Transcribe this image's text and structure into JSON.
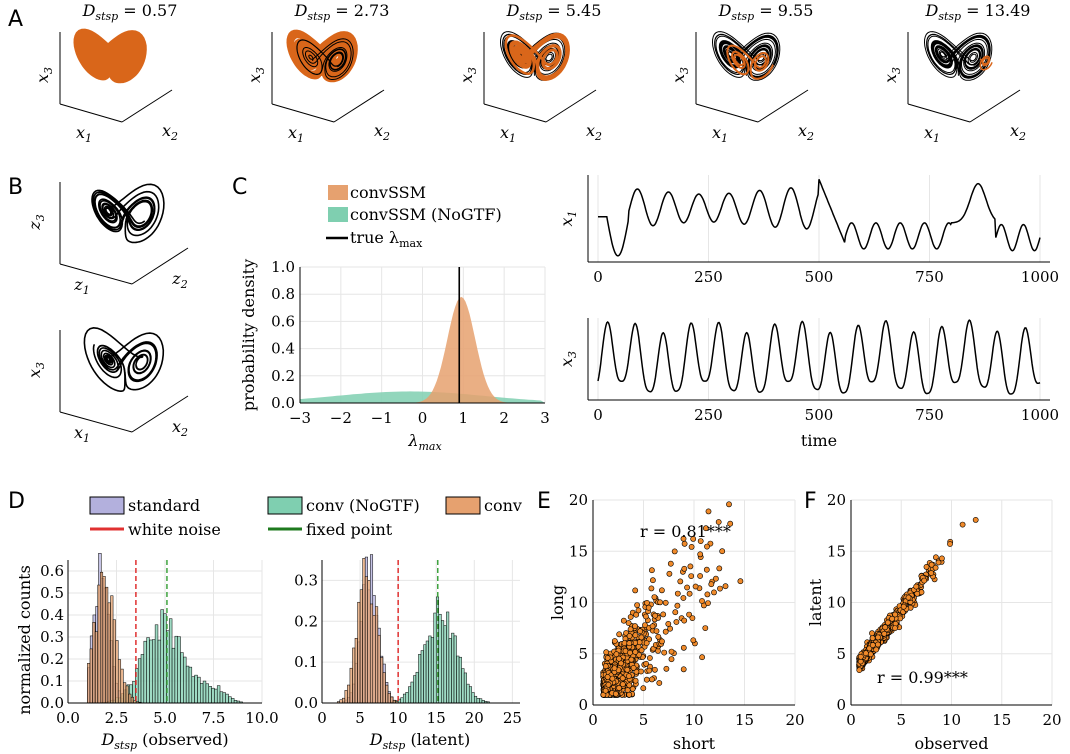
{
  "panels": {
    "A": {
      "letter": "A",
      "titles": [
        {
          "label": "D",
          "sub": "stsp",
          "value": "= 0.57"
        },
        {
          "label": "D",
          "sub": "stsp",
          "value": "= 2.73"
        },
        {
          "label": "D",
          "sub": "stsp",
          "value": "= 5.45"
        },
        {
          "label": "D",
          "sub": "stsp",
          "value": "= 9.55"
        },
        {
          "label": "D",
          "sub": "stsp",
          "value": "= 13.49"
        }
      ],
      "axes": {
        "x1": "x",
        "x1_sub": "1",
        "x2": "x",
        "x2_sub": "2",
        "x3": "x",
        "x3_sub": "3"
      }
    },
    "B": {
      "letter": "B",
      "top_axes": {
        "a": "z",
        "a_sub": "1",
        "b": "z",
        "b_sub": "2",
        "c": "z",
        "c_sub": "3"
      },
      "bottom_axes": {
        "a": "x",
        "a_sub": "1",
        "b": "x",
        "b_sub": "2",
        "c": "x",
        "c_sub": "3"
      }
    },
    "C": {
      "letter": "C",
      "legend": [
        "convSSM",
        "convSSM (NoGTF)",
        "true λ",
        "max"
      ],
      "ylabel": "probability density",
      "xlabel_main": "λ",
      "xlabel_sub": "max",
      "ts_top_ylabel": "x",
      "ts_top_sub": "1",
      "ts_bottom_ylabel": "x",
      "ts_bottom_sub": "3",
      "ts_xlabel": "time"
    },
    "D": {
      "letter": "D",
      "legend": [
        "standard",
        "conv (NoGTF)",
        "conv",
        "white noise",
        "fixed point"
      ],
      "ylabel": "normalized counts",
      "xlabel_left": "(observed)",
      "xlabel_right": "(latent)",
      "xlabel_var": "D",
      "xlabel_sub": "stsp"
    },
    "E": {
      "letter": "E",
      "xlabel": "short",
      "ylabel": "long",
      "r_text": "r =  0.81***"
    },
    "F": {
      "letter": "F",
      "xlabel": "observed",
      "ylabel": "latent",
      "r_text": "r =  0.99***"
    }
  },
  "chart_data": [
    {
      "type": "area",
      "panel": "C-density",
      "xlabel": "λmax",
      "ylabel": "probability density",
      "xlim": [
        -3,
        3
      ],
      "ylim": [
        0,
        1.0
      ],
      "x_ticks": [
        -3,
        -2,
        -1,
        0,
        1,
        2,
        3
      ],
      "y_ticks": [
        0.0,
        0.2,
        0.4,
        0.6,
        0.8,
        1.0
      ],
      "true_lambda_max": 0.9,
      "series": [
        {
          "name": "convSSM",
          "color": "#e6a16f",
          "x": [
            -3,
            -1,
            0,
            0.3,
            0.5,
            0.7,
            0.9,
            1.1,
            1.3,
            1.5,
            1.8,
            2.2,
            3
          ],
          "y": [
            0,
            0.0,
            0.03,
            0.1,
            0.25,
            0.55,
            0.78,
            0.74,
            0.52,
            0.3,
            0.1,
            0.02,
            0
          ]
        },
        {
          "name": "convSSM (NoGTF)",
          "color": "#7fcfb0",
          "x": [
            -3,
            -2,
            -1,
            0,
            1,
            2,
            3
          ],
          "y": [
            0.05,
            0.07,
            0.09,
            0.09,
            0.08,
            0.05,
            0.02
          ]
        }
      ],
      "grid": true
    },
    {
      "type": "line",
      "panel": "C-timeseries-x1",
      "xlim": [
        0,
        1000
      ],
      "x_ticks": [
        0,
        250,
        500,
        750,
        1000
      ],
      "ylabel": "x1"
    },
    {
      "type": "line",
      "panel": "C-timeseries-x3",
      "xlim": [
        0,
        1000
      ],
      "x_ticks": [
        0,
        250,
        500,
        750,
        1000
      ],
      "xlabel": "time",
      "ylabel": "x3"
    },
    {
      "type": "bar",
      "panel": "D-observed",
      "xlim": [
        0,
        10
      ],
      "ylim": [
        0,
        0.65
      ],
      "x_ticks": [
        "0.0",
        "2.5",
        "5.0",
        "7.5",
        "10.0"
      ],
      "y_ticks": [
        "0.0",
        "0.1",
        "0.2",
        "0.3",
        "0.4",
        "0.5",
        "0.6"
      ],
      "white_noise": 3.5,
      "fixed_point": 5.1,
      "series": [
        {
          "name": "standard",
          "color": "#b3b0dd"
        },
        {
          "name": "conv (NoGTF)",
          "color": "#7fcfb0"
        },
        {
          "name": "conv",
          "color": "#e6a16f"
        }
      ]
    },
    {
      "type": "bar",
      "panel": "D-latent",
      "xlim": [
        0,
        26
      ],
      "ylim": [
        0,
        0.35
      ],
      "x_ticks": [
        "0",
        "5",
        "10",
        "15",
        "20",
        "25"
      ],
      "y_ticks": [
        "0.0",
        "0.1",
        "0.2",
        "0.3"
      ],
      "white_noise": 10,
      "fixed_point": 15.2
    },
    {
      "type": "scatter",
      "panel": "E",
      "xlabel": "short",
      "ylabel": "long",
      "xlim": [
        0,
        20
      ],
      "ylim": [
        0,
        20
      ],
      "x_ticks": [
        0,
        5,
        10,
        15,
        20
      ],
      "y_ticks": [
        0,
        5,
        10,
        15,
        20
      ],
      "r": 0.81
    },
    {
      "type": "scatter",
      "panel": "F",
      "xlabel": "observed",
      "ylabel": "latent",
      "xlim": [
        0,
        20
      ],
      "ylim": [
        0,
        20
      ],
      "x_ticks": [
        0,
        5,
        10,
        15,
        20
      ],
      "y_ticks": [
        0,
        5,
        10,
        15,
        20
      ],
      "r": 0.99
    }
  ],
  "colors": {
    "orange": "#e6a16f",
    "dark_orange": "#d9661a",
    "green": "#7fcfb0",
    "purple": "#b3b0dd",
    "red": "#e03030",
    "darkgreen": "#1e7a1e"
  }
}
